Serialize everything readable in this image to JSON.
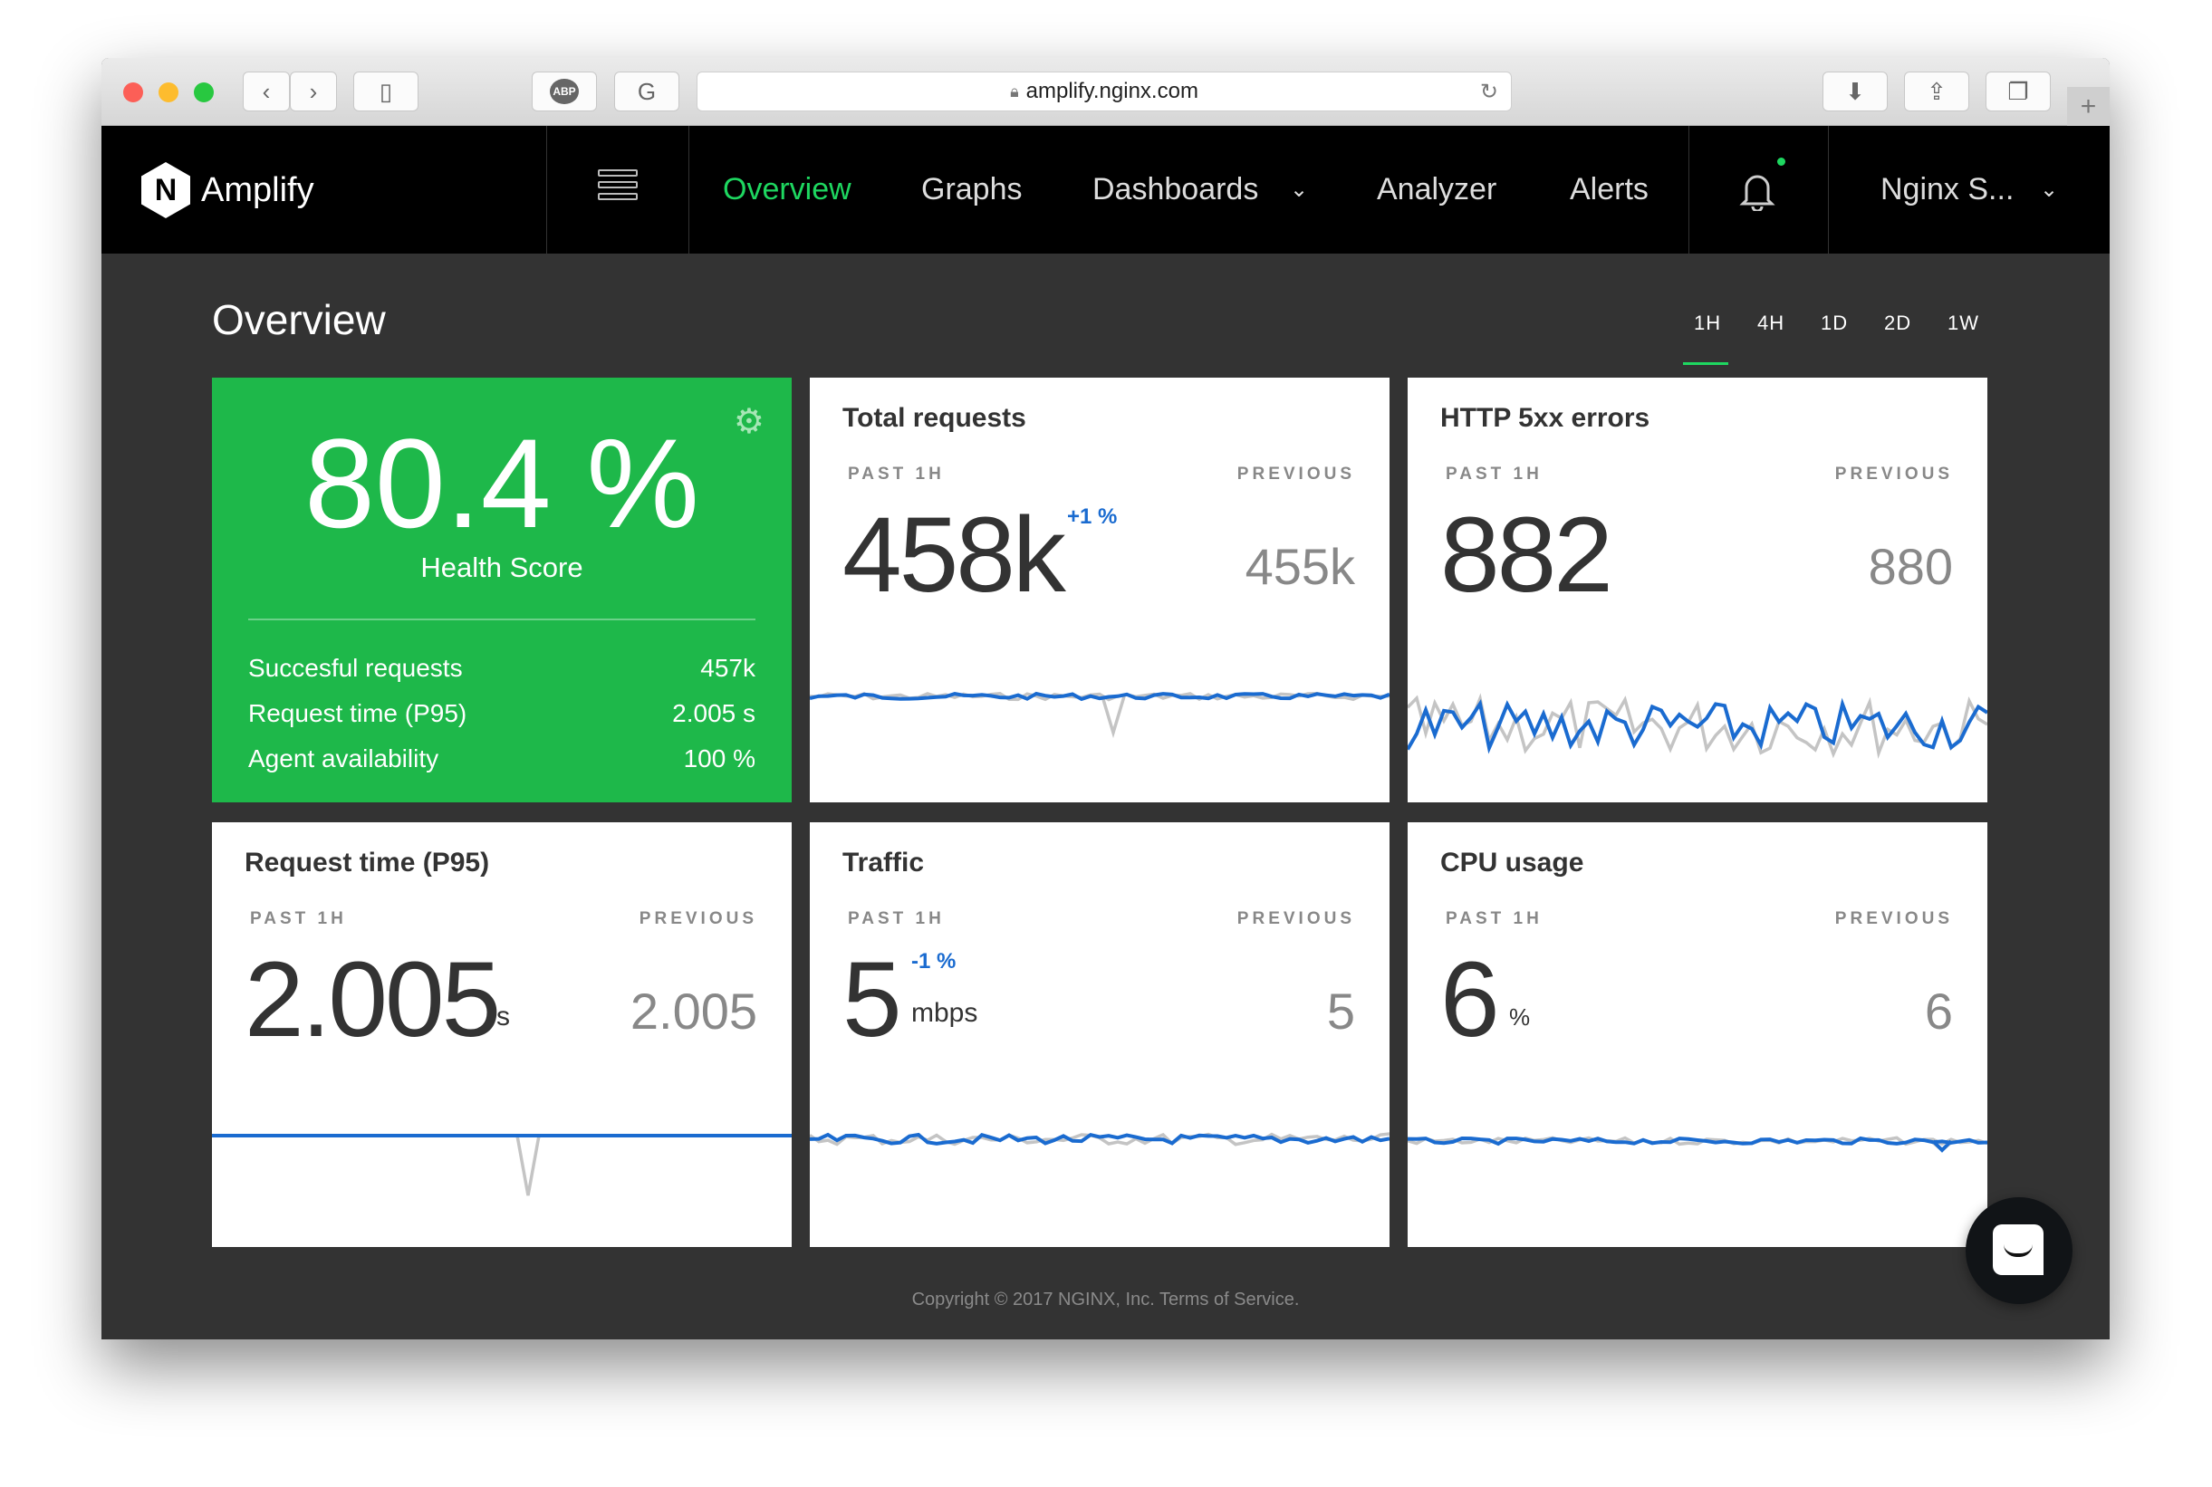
{
  "browser": {
    "url": "amplify.nginx.com",
    "icons": [
      "back-icon",
      "forward-icon",
      "sidebar-icon",
      "adblock-icon",
      "grammarly-icon",
      "lock-icon",
      "reload-icon",
      "download-icon",
      "share-icon",
      "tabs-icon",
      "new-tab-icon"
    ],
    "abp_label": "ABP"
  },
  "nav": {
    "brand": "Amplify",
    "logo_letter": "N",
    "items": [
      "Overview",
      "Graphs",
      "Dashboards",
      "Analyzer",
      "Alerts"
    ],
    "active": "Overview",
    "account": "Nginx S...",
    "accent": "#1ed760"
  },
  "page": {
    "title": "Overview",
    "time_ranges": [
      "1H",
      "4H",
      "1D",
      "2D",
      "1W"
    ],
    "selected_range": "1H"
  },
  "health": {
    "score": "80.4 %",
    "label": "Health Score",
    "rows": [
      {
        "label": "Succesful requests",
        "value": "457k"
      },
      {
        "label": "Request time (P95)",
        "value": "2.005 s"
      },
      {
        "label": "Agent availability",
        "value": "100 %"
      }
    ],
    "color": "#1eb84a"
  },
  "cards": [
    {
      "title": "Total requests",
      "past_label": "PAST 1H",
      "prev_label": "PREVIOUS",
      "value": "458k",
      "change": "+1 %",
      "unit": "",
      "previous": "455k"
    },
    {
      "title": "HTTP 5xx errors",
      "past_label": "PAST 1H",
      "prev_label": "PREVIOUS",
      "value": "882",
      "change": "",
      "unit": "",
      "previous": "880"
    },
    {
      "title": "Request time (P95)",
      "past_label": "PAST 1H",
      "prev_label": "PREVIOUS",
      "value": "2.005",
      "change": "",
      "unit": "s",
      "previous": "2.005"
    },
    {
      "title": "Traffic",
      "past_label": "PAST 1H",
      "prev_label": "PREVIOUS",
      "value": "5",
      "change": "-1 %",
      "unit": "mbps",
      "previous": "5"
    },
    {
      "title": "CPU usage",
      "past_label": "PAST 1H",
      "prev_label": "PREVIOUS",
      "value": "6",
      "change": "",
      "unit": "%",
      "previous": "6"
    }
  ],
  "series_colors": {
    "current": "#1a6bd0",
    "previous": "#c4c4c4"
  },
  "footer": "Copyright © 2017 NGINX, Inc. Terms of Service."
}
